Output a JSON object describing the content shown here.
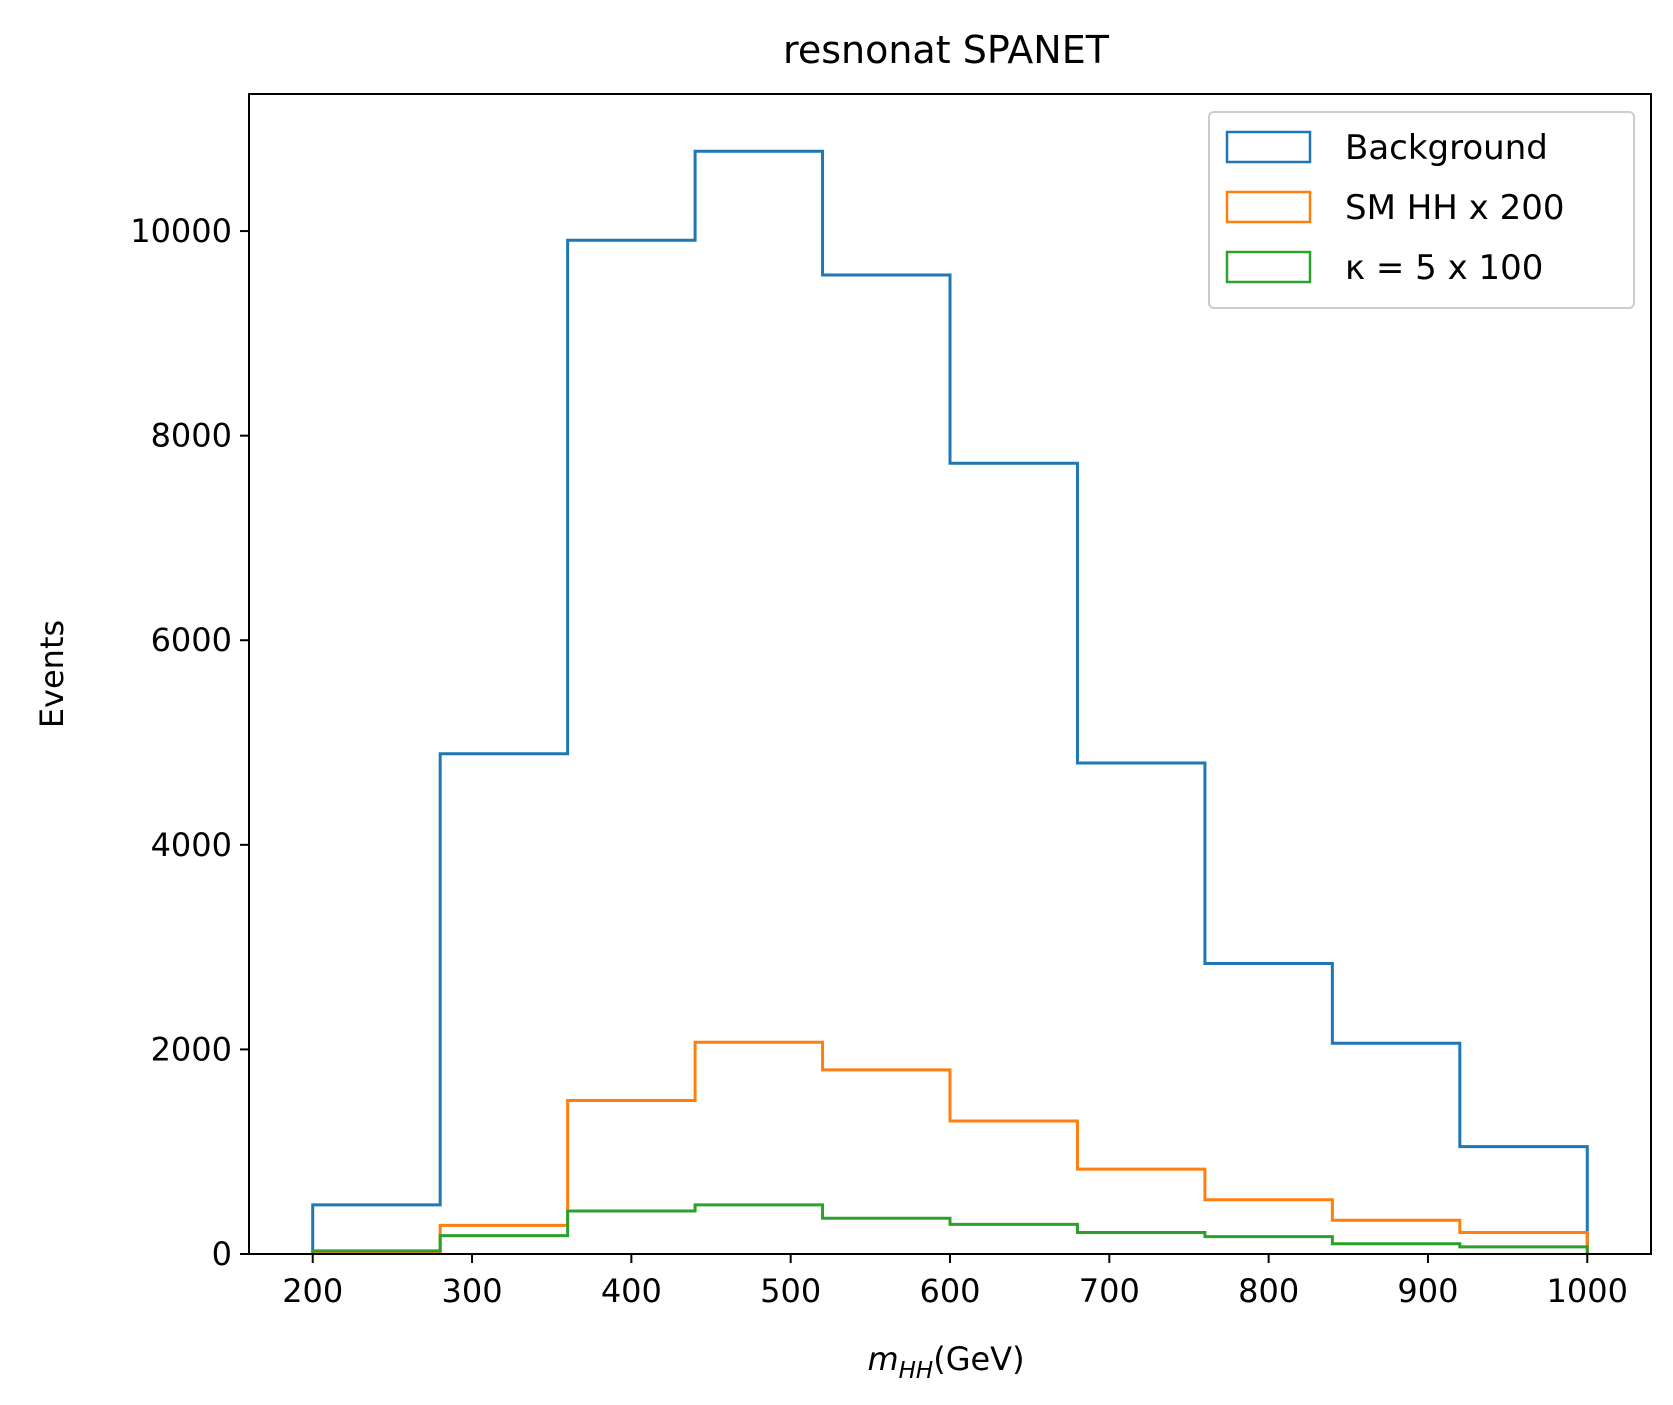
{
  "chart_data": {
    "type": "histogram",
    "title": "resnonat SPANET",
    "xlabel": {
      "main": "m",
      "sub": "HH",
      "rest": "(GeV)"
    },
    "ylabel": "Events",
    "xlim": [
      160,
      1040
    ],
    "ylim": [
      0,
      11340
    ],
    "xticks": [
      200,
      300,
      400,
      500,
      600,
      700,
      800,
      900,
      1000
    ],
    "yticks": [
      0,
      2000,
      4000,
      6000,
      8000,
      10000
    ],
    "bin_edges": [
      200,
      280,
      360,
      440,
      520,
      600,
      680,
      760,
      840,
      920,
      1000
    ],
    "legend_position": "top-right",
    "grid": false,
    "series": [
      {
        "name": "Background",
        "color": "#1f77b4",
        "values": [
          480,
          4890,
          9910,
          10780,
          9570,
          7730,
          4800,
          2840,
          2060,
          1050
        ]
      },
      {
        "name": "SM HH x 200",
        "color": "#ff7f0e",
        "values": [
          10,
          280,
          1500,
          2070,
          1800,
          1300,
          830,
          530,
          330,
          210
        ]
      },
      {
        "name": "κ = 5 x 100",
        "color": "#2ca02c",
        "values": [
          30,
          180,
          420,
          480,
          350,
          290,
          210,
          170,
          100,
          70
        ]
      }
    ]
  }
}
